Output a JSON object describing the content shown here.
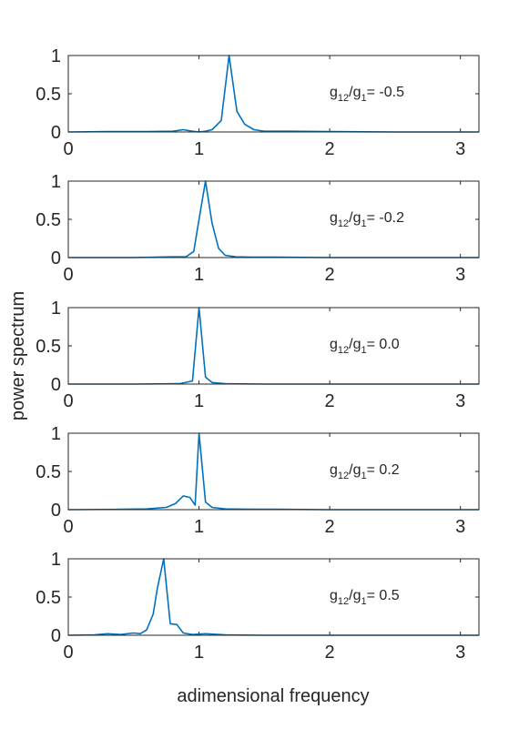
{
  "figure": {
    "ylabel": "power spectrum",
    "xlabel": "adimensional frequency"
  },
  "chart_data": [
    {
      "type": "line",
      "annotation": {
        "base": "g",
        "sub1": "12",
        "mid": "/g",
        "sub2": "1",
        "tail": "= -0.5"
      },
      "xlim": [
        0,
        3.1416
      ],
      "ylim": [
        0,
        1
      ],
      "xticks": [
        0,
        1,
        2,
        3
      ],
      "yticks": [
        0,
        0.5,
        1
      ],
      "ytick_labels": [
        "0",
        "0.5",
        "1"
      ],
      "grid": false,
      "series": [
        {
          "color": "#0072BD",
          "x": [
            0,
            0.3,
            0.6,
            0.8,
            0.88,
            0.95,
            1.0,
            1.05,
            1.1,
            1.17,
            1.23,
            1.29,
            1.35,
            1.42,
            1.5,
            1.7,
            2.0,
            2.5,
            3.1416
          ],
          "y": [
            0,
            0.005,
            0.005,
            0.01,
            0.03,
            0.01,
            0,
            0.01,
            0.03,
            0.15,
            1.0,
            0.27,
            0.1,
            0.03,
            0.01,
            0.01,
            0.005,
            0,
            0
          ]
        }
      ]
    },
    {
      "type": "line",
      "annotation": {
        "base": "g",
        "sub1": "12",
        "mid": "/g",
        "sub2": "1",
        "tail": "= -0.2"
      },
      "xlim": [
        0,
        3.1416
      ],
      "ylim": [
        0,
        1
      ],
      "xticks": [
        0,
        1,
        2,
        3
      ],
      "yticks": [
        0,
        0.5,
        1
      ],
      "ytick_labels": [
        "0",
        "0.5",
        "1"
      ],
      "grid": false,
      "series": [
        {
          "color": "#0072BD",
          "x": [
            0,
            0.5,
            0.8,
            0.9,
            0.96,
            1.0,
            1.05,
            1.1,
            1.15,
            1.2,
            1.28,
            1.4,
            1.6,
            2.0,
            2.5,
            3.1416
          ],
          "y": [
            0,
            0,
            0.01,
            0.01,
            0.08,
            0.5,
            1.0,
            0.45,
            0.12,
            0.03,
            0.01,
            0.005,
            0.005,
            0,
            0,
            0
          ]
        }
      ]
    },
    {
      "type": "line",
      "annotation": {
        "base": "g",
        "sub1": "12",
        "mid": "/g",
        "sub2": "1",
        "tail": "= 0.0"
      },
      "xlim": [
        0,
        3.1416
      ],
      "ylim": [
        0,
        1
      ],
      "xticks": [
        0,
        1,
        2,
        3
      ],
      "yticks": [
        0,
        0.5,
        1
      ],
      "ytick_labels": [
        "0",
        "0.5",
        "1"
      ],
      "grid": false,
      "series": [
        {
          "color": "#0072BD",
          "x": [
            0,
            0.5,
            0.85,
            0.95,
            1.0,
            1.05,
            1.1,
            1.2,
            1.5,
            2.0,
            3.1416
          ],
          "y": [
            0,
            0,
            0.005,
            0.04,
            1.0,
            0.09,
            0.02,
            0.005,
            0,
            0,
            0
          ]
        }
      ]
    },
    {
      "type": "line",
      "annotation": {
        "base": "g",
        "sub1": "12",
        "mid": "/g",
        "sub2": "1",
        "tail": "= 0.2"
      },
      "xlim": [
        0,
        3.1416
      ],
      "ylim": [
        0,
        1
      ],
      "xticks": [
        0,
        1,
        2,
        3
      ],
      "yticks": [
        0,
        0.5,
        1
      ],
      "ytick_labels": [
        "0",
        "0.5",
        "1"
      ],
      "grid": false,
      "series": [
        {
          "color": "#0072BD",
          "x": [
            0,
            0.4,
            0.6,
            0.75,
            0.82,
            0.88,
            0.93,
            0.97,
            1.0,
            1.05,
            1.1,
            1.2,
            1.4,
            1.6,
            2.0,
            2.5,
            3.1416
          ],
          "y": [
            0,
            0.005,
            0.01,
            0.03,
            0.08,
            0.18,
            0.16,
            0.06,
            1.0,
            0.1,
            0.03,
            0.01,
            0.005,
            0.005,
            0,
            0,
            0
          ]
        }
      ]
    },
    {
      "type": "line",
      "annotation": {
        "base": "g",
        "sub1": "12",
        "mid": "/g",
        "sub2": "1",
        "tail": "= 0.5"
      },
      "xlim": [
        0,
        3.1416
      ],
      "ylim": [
        0,
        1
      ],
      "xticks": [
        0,
        1,
        2,
        3
      ],
      "yticks": [
        0,
        0.5,
        1
      ],
      "ytick_labels": [
        "0",
        "0.5",
        "1"
      ],
      "grid": false,
      "series": [
        {
          "color": "#0072BD",
          "x": [
            0,
            0.2,
            0.3,
            0.4,
            0.5,
            0.55,
            0.6,
            0.65,
            0.68,
            0.73,
            0.78,
            0.83,
            0.88,
            0.95,
            1.05,
            1.2,
            1.5,
            2.0,
            2.5,
            3.1416
          ],
          "y": [
            0,
            0.005,
            0.02,
            0.01,
            0.03,
            0.02,
            0.07,
            0.28,
            0.6,
            1.0,
            0.15,
            0.14,
            0.03,
            0.01,
            0.02,
            0.005,
            0,
            0,
            0,
            0
          ]
        }
      ]
    }
  ]
}
